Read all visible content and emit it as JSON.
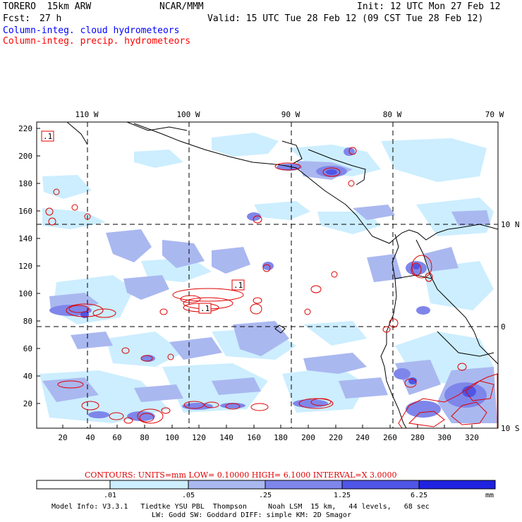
{
  "header": {
    "model": "TORERO  15km ARW",
    "org": "NCAR/MMM",
    "init": "Init: 12 UTC Mon 27 Feb 12",
    "fcst_label": "Fcst:",
    "fcst_value": "27 h",
    "valid": "Valid: 15 UTC Tue 28 Feb 12 (09 CST Tue 28 Feb 12)"
  },
  "legend_titles": {
    "cloud": "Column-integ. cloud hydrometeors",
    "precip": "Column-integ. precip. hydrometeors"
  },
  "colors": {
    "cloud_text": "#0000ff",
    "precip_text": "#ff0000",
    "c1": "#cceeff",
    "c2": "#aab8f0",
    "c3": "#7f86ea",
    "c4": "#4f55e6",
    "c5": "#1f22e0"
  },
  "map": {
    "lon_labels": [
      "110 W",
      "100 W",
      "90 W",
      "80 W",
      "70 W"
    ],
    "lat_labels": [
      "10 N",
      "0",
      "10 S"
    ],
    "y_ticks": [
      "220",
      "200",
      "180",
      "160",
      "140",
      "120",
      "100",
      "80",
      "60",
      "40",
      "20"
    ],
    "x_ticks": [
      "20",
      "40",
      "60",
      "80",
      "100",
      "120",
      "140",
      "160",
      "180",
      "200",
      "220",
      "240",
      "260",
      "280",
      "300",
      "320"
    ],
    "contour_labels": [
      ".1",
      ".1",
      ".1"
    ]
  },
  "contour_info": "CONTOURS:  UNITS=mm  LOW= 0.10000       HIGH=  6.1000       INTERVAL=X  3.0000",
  "colorbar": {
    "values": [
      ".01",
      ".05",
      ".25",
      "1.25",
      "6.25"
    ],
    "unit": "mm"
  },
  "model_info": {
    "line1": "Model Info: V3.3.1   Tiedtke YSU PBL  Thompson     Noah LSM  15 km,   44 levels,   68 sec",
    "line2": "LW: Godd SW: Goddard DIFF: simple KM: 2D Smagor"
  }
}
